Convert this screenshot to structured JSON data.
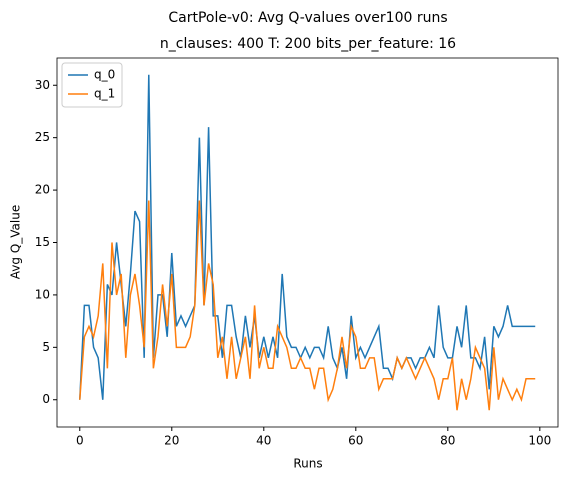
{
  "chart_data": {
    "type": "line",
    "title": "CartPole-v0: Avg Q-values over100 runs",
    "subtitle": "n_clauses: 400 T: 200 bits_per_feature: 16",
    "x_label": "Runs",
    "y_label": "Avg Q_Value",
    "x": [
      0,
      1,
      2,
      3,
      4,
      5,
      6,
      7,
      8,
      9,
      10,
      11,
      12,
      13,
      14,
      15,
      16,
      17,
      18,
      19,
      20,
      21,
      22,
      23,
      24,
      25,
      26,
      27,
      28,
      29,
      30,
      31,
      32,
      33,
      34,
      35,
      36,
      37,
      38,
      39,
      40,
      41,
      42,
      43,
      44,
      45,
      46,
      47,
      48,
      49,
      50,
      51,
      52,
      53,
      54,
      55,
      56,
      57,
      58,
      59,
      60,
      61,
      62,
      63,
      64,
      65,
      66,
      67,
      68,
      69,
      70,
      71,
      72,
      73,
      74,
      75,
      76,
      77,
      78,
      79,
      80,
      81,
      82,
      83,
      84,
      85,
      86,
      87,
      88,
      89,
      90,
      91,
      92,
      93,
      94,
      95,
      96,
      97,
      98,
      99
    ],
    "series": [
      {
        "name": "q_0",
        "color": "#1f77b4",
        "values": [
          0,
          9,
          9,
          5,
          4,
          0,
          11,
          10,
          15,
          11,
          7,
          12,
          18,
          17,
          4,
          31,
          4,
          10,
          10,
          6,
          14,
          7,
          8,
          7,
          8,
          9,
          25,
          9,
          26,
          8,
          8,
          4,
          9,
          9,
          6,
          4,
          8,
          5,
          8,
          4,
          6,
          4,
          6,
          4,
          12,
          6,
          5,
          5,
          4,
          5,
          4,
          5,
          5,
          4,
          7,
          4,
          3,
          5,
          2,
          8,
          4,
          5,
          4,
          5,
          6,
          7,
          3,
          3,
          2,
          4,
          3,
          4,
          4,
          3,
          4,
          4,
          5,
          4,
          9,
          5,
          4,
          4,
          7,
          5,
          9,
          4,
          4,
          3,
          6,
          1,
          7,
          6,
          7,
          9,
          7,
          7,
          7,
          7,
          7,
          7
        ]
      },
      {
        "name": "q_1",
        "color": "#ff7f0e",
        "values": [
          0,
          6,
          7,
          6,
          8,
          13,
          3,
          15,
          10,
          12,
          4,
          10,
          12,
          9,
          5,
          19,
          3,
          6,
          11,
          7,
          12,
          5,
          5,
          5,
          6,
          9,
          19,
          9,
          13,
          11,
          4,
          6,
          2,
          6,
          2,
          4,
          6,
          2,
          9,
          3,
          5,
          3,
          3,
          7,
          6,
          5,
          3,
          3,
          4,
          3,
          3,
          1,
          3,
          3,
          0,
          1,
          3,
          6,
          3,
          7,
          6,
          3,
          3,
          4,
          4,
          1,
          2,
          2,
          2,
          4,
          3,
          4,
          3,
          2,
          3,
          4,
          3,
          2,
          0,
          2,
          2,
          4,
          -1,
          2,
          0,
          2,
          5,
          4,
          3,
          -1,
          5,
          0,
          2,
          1,
          0,
          1,
          0,
          2,
          2,
          2
        ]
      }
    ],
    "xlim": [
      -4.95,
      103.95
    ],
    "xticks": [
      0,
      20,
      40,
      60,
      80,
      100
    ],
    "ylim": [
      -2.6,
      32.6
    ],
    "yticks": [
      0,
      5,
      10,
      15,
      20,
      25,
      30
    ],
    "legend": "upper left"
  }
}
